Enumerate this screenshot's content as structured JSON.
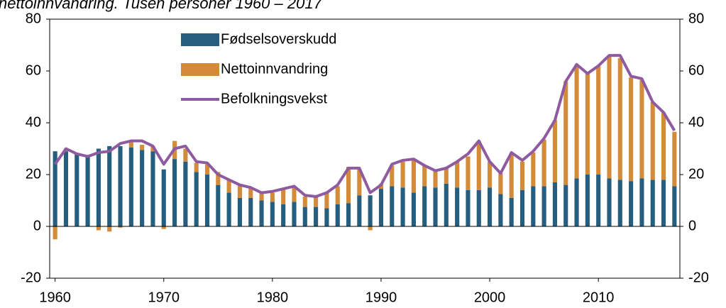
{
  "chart_data": {
    "type": "bar",
    "title": "nettoinnvandring. Tusen personer 1960 – 2017",
    "x": [
      1960,
      1961,
      1962,
      1963,
      1964,
      1965,
      1966,
      1967,
      1968,
      1969,
      1970,
      1971,
      1972,
      1973,
      1974,
      1975,
      1976,
      1977,
      1978,
      1979,
      1980,
      1981,
      1982,
      1983,
      1984,
      1985,
      1986,
      1987,
      1988,
      1989,
      1990,
      1991,
      1992,
      1993,
      1994,
      1995,
      1996,
      1997,
      1998,
      1999,
      2000,
      2001,
      2002,
      2003,
      2004,
      2005,
      2006,
      2007,
      2008,
      2009,
      2010,
      2011,
      2012,
      2013,
      2014,
      2015,
      2016,
      2017
    ],
    "series": [
      {
        "name": "Fødselsoverskudd",
        "type": "bar",
        "color": "#255e7e",
        "values": [
          29,
          29,
          28,
          27,
          30,
          31,
          31,
          30.5,
          29.5,
          29,
          22,
          26,
          25,
          21,
          20,
          16,
          13,
          11,
          11,
          10,
          9.5,
          8.5,
          9.5,
          7.5,
          7.5,
          7,
          8.5,
          9,
          12,
          12,
          14.5,
          15.5,
          15,
          13,
          15.5,
          15,
          16.5,
          15,
          14,
          14,
          15,
          12.5,
          11,
          14,
          15.5,
          15.5,
          17,
          16,
          18.5,
          20,
          20,
          18.5,
          18,
          17.5,
          18.5,
          18,
          18,
          15.5
        ]
      },
      {
        "name": "Nettoinnvandring",
        "type": "bar",
        "color": "#d38b3a",
        "values": [
          -5,
          1,
          0,
          0.5,
          -1.5,
          -2,
          -0.5,
          2,
          2,
          2,
          -1,
          7,
          5,
          3.5,
          4,
          5,
          5,
          5,
          4,
          3,
          3.5,
          6,
          6,
          4,
          4,
          6,
          7,
          14,
          10,
          -1.5,
          2,
          8,
          10,
          13,
          8,
          7,
          6,
          10,
          13,
          19,
          10,
          8,
          17,
          11,
          13,
          18,
          24,
          40,
          44,
          39,
          42,
          47,
          47,
          40,
          38,
          30,
          26,
          21
        ]
      },
      {
        "name": "Befolkningsvekst",
        "type": "line",
        "color": "#8e5aa0",
        "values": [
          24,
          30,
          28,
          27,
          28.5,
          29,
          32,
          33,
          33,
          31,
          24,
          30,
          31,
          25,
          24.5,
          20,
          18,
          16,
          15,
          13,
          13.5,
          14.5,
          15.5,
          12,
          11.5,
          13,
          16,
          22.5,
          22.5,
          13,
          16,
          24,
          25.5,
          26,
          23.5,
          21.5,
          22.5,
          25,
          28,
          33,
          25,
          20.5,
          28.5,
          25.5,
          29,
          34,
          41,
          56,
          62.5,
          59,
          62,
          66,
          66,
          58,
          57,
          48,
          44,
          37
        ]
      }
    ],
    "xlim": [
      1959.5,
      2017.5
    ],
    "xticks": [
      1960,
      1970,
      1980,
      1990,
      2000,
      2010
    ],
    "ylim": [
      -20,
      80
    ],
    "yticks": [
      -20,
      0,
      20,
      40,
      60,
      80
    ],
    "y2lim": [
      -20,
      80
    ],
    "y2ticks": [
      -20,
      0,
      20,
      40,
      60,
      80
    ]
  }
}
